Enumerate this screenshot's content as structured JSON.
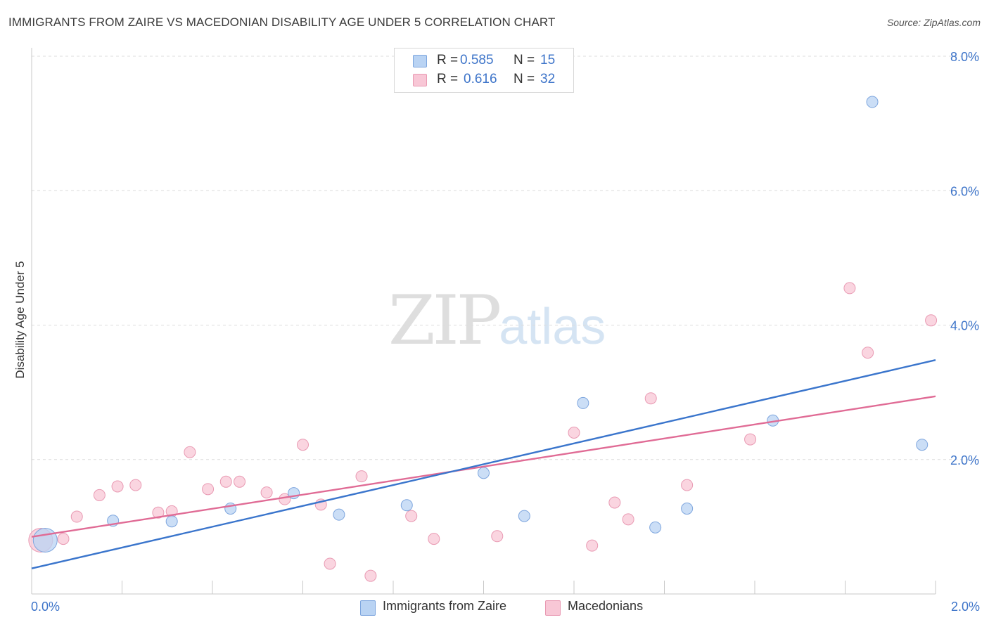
{
  "title": "IMMIGRANTS FROM ZAIRE VS MACEDONIAN DISABILITY AGE UNDER 5 CORRELATION CHART",
  "source": "Source: ZipAtlas.com",
  "watermark": {
    "zip": "ZIP",
    "atlas": "atlas"
  },
  "legend_top": {
    "rows": [
      {
        "r_label": "R =",
        "r_value": "0.585",
        "n_label": "N =",
        "n_value": "15"
      },
      {
        "r_label": "R =",
        "r_value": "0.616",
        "n_label": "N =",
        "n_value": "32"
      }
    ]
  },
  "legend_bottom": {
    "items": [
      {
        "label": "Immigrants from Zaire"
      },
      {
        "label": "Macedonians"
      }
    ]
  },
  "colors": {
    "blue_fill": "#b9d3f3",
    "blue_stroke": "#7ea6de",
    "blue_line": "#3a75cc",
    "pink_fill": "#f8c7d6",
    "pink_stroke": "#e99ab3",
    "pink_line": "#e06b95",
    "tick_label": "#3d74c9",
    "grid": "#dcdcdc"
  },
  "chart_data": {
    "type": "scatter",
    "title": "IMMIGRANTS FROM ZAIRE VS MACEDONIAN DISABILITY AGE UNDER 5 CORRELATION CHART",
    "xlabel": "",
    "ylabel": "Disability Age Under 5",
    "xlim": [
      0,
      2.0
    ],
    "ylim": [
      0,
      8.0
    ],
    "x_tick_labels": [
      "0.0%",
      "2.0%"
    ],
    "y_ticks": [
      2.0,
      4.0,
      6.0,
      8.0
    ],
    "y_tick_labels": [
      "2.0%",
      "4.0%",
      "6.0%",
      "8.0%"
    ],
    "legend_position": "top-center",
    "series": [
      {
        "name": "Immigrants from Zaire",
        "r": 0.585,
        "n": 15,
        "points": [
          {
            "x": 0.03,
            "y": 0.8,
            "size": "large"
          },
          {
            "x": 0.18,
            "y": 1.09
          },
          {
            "x": 0.31,
            "y": 1.08
          },
          {
            "x": 0.44,
            "y": 1.27
          },
          {
            "x": 0.58,
            "y": 1.5
          },
          {
            "x": 0.68,
            "y": 1.18
          },
          {
            "x": 0.83,
            "y": 1.32
          },
          {
            "x": 1.0,
            "y": 1.8
          },
          {
            "x": 1.09,
            "y": 1.16
          },
          {
            "x": 1.22,
            "y": 2.84
          },
          {
            "x": 1.38,
            "y": 0.99
          },
          {
            "x": 1.45,
            "y": 1.27
          },
          {
            "x": 1.64,
            "y": 2.58
          },
          {
            "x": 1.86,
            "y": 7.32
          },
          {
            "x": 1.97,
            "y": 2.22
          }
        ],
        "trend": {
          "x": [
            0.0,
            2.0
          ],
          "y": [
            0.38,
            3.48
          ]
        }
      },
      {
        "name": "Macedonians",
        "r": 0.616,
        "n": 32,
        "points": [
          {
            "x": 0.02,
            "y": 0.8,
            "size": "large"
          },
          {
            "x": 0.07,
            "y": 0.82
          },
          {
            "x": 0.1,
            "y": 1.15
          },
          {
            "x": 0.15,
            "y": 1.47
          },
          {
            "x": 0.19,
            "y": 1.6
          },
          {
            "x": 0.23,
            "y": 1.62
          },
          {
            "x": 0.28,
            "y": 1.21
          },
          {
            "x": 0.31,
            "y": 1.23
          },
          {
            "x": 0.35,
            "y": 2.11
          },
          {
            "x": 0.39,
            "y": 1.56
          },
          {
            "x": 0.43,
            "y": 1.67
          },
          {
            "x": 0.46,
            "y": 1.67
          },
          {
            "x": 0.52,
            "y": 1.51
          },
          {
            "x": 0.56,
            "y": 1.41
          },
          {
            "x": 0.6,
            "y": 2.22
          },
          {
            "x": 0.64,
            "y": 1.33
          },
          {
            "x": 0.66,
            "y": 0.45
          },
          {
            "x": 0.73,
            "y": 1.75
          },
          {
            "x": 0.75,
            "y": 0.27
          },
          {
            "x": 0.84,
            "y": 1.16
          },
          {
            "x": 0.89,
            "y": 0.82
          },
          {
            "x": 1.03,
            "y": 0.86
          },
          {
            "x": 1.2,
            "y": 2.4
          },
          {
            "x": 1.24,
            "y": 0.72
          },
          {
            "x": 1.29,
            "y": 1.36
          },
          {
            "x": 1.32,
            "y": 1.11
          },
          {
            "x": 1.37,
            "y": 2.91
          },
          {
            "x": 1.45,
            "y": 1.62
          },
          {
            "x": 1.59,
            "y": 2.3
          },
          {
            "x": 1.81,
            "y": 4.55
          },
          {
            "x": 1.85,
            "y": 3.59
          },
          {
            "x": 1.99,
            "y": 4.07
          }
        ],
        "trend": {
          "x": [
            0.0,
            2.0
          ],
          "y": [
            0.85,
            2.94
          ]
        }
      }
    ]
  }
}
